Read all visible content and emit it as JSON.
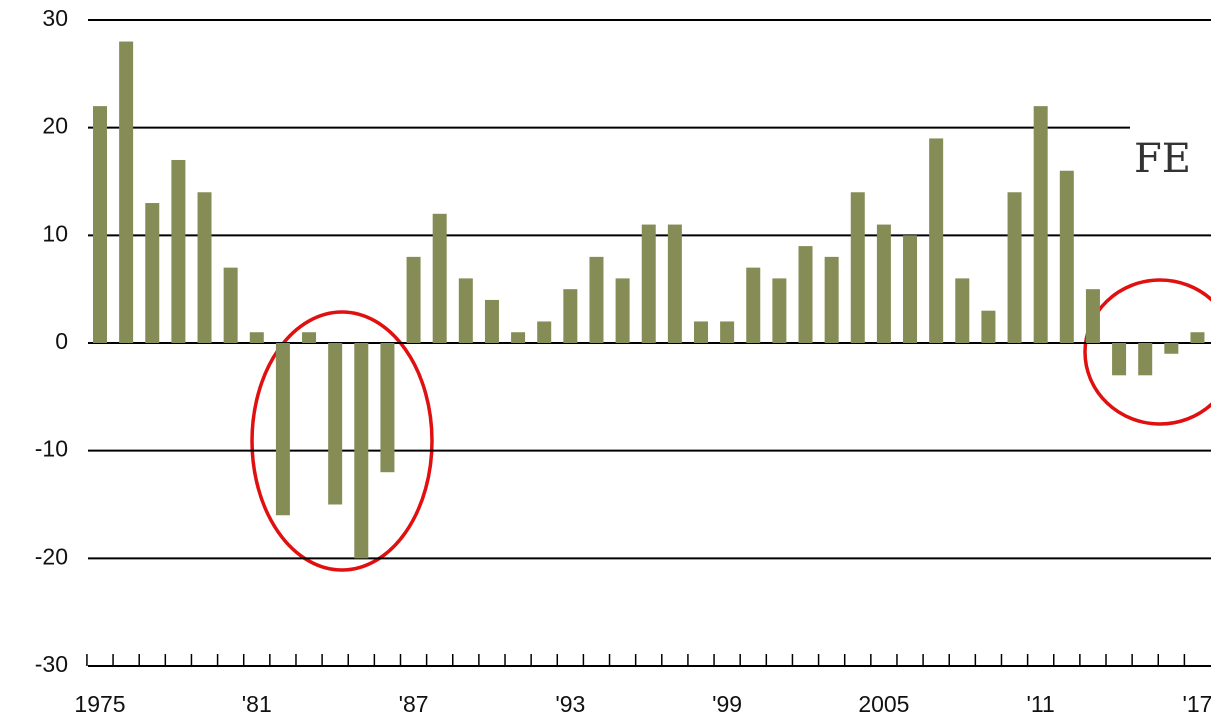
{
  "chart_data": {
    "type": "bar",
    "annotation": "FE",
    "categories": [
      "1975",
      null,
      null,
      null,
      null,
      null,
      "'81",
      null,
      null,
      null,
      null,
      null,
      "'87",
      null,
      null,
      null,
      null,
      null,
      "'93",
      null,
      null,
      null,
      null,
      null,
      "'99",
      null,
      null,
      null,
      null,
      null,
      "2005",
      null,
      null,
      null,
      null,
      null,
      "'11",
      null,
      null,
      null,
      null,
      null,
      "'17"
    ],
    "values": [
      22,
      28,
      13,
      17,
      14,
      7,
      1,
      -16,
      1,
      -15,
      -20,
      -12,
      8,
      12,
      6,
      4,
      1,
      2,
      5,
      8,
      6,
      11,
      11,
      2,
      2,
      7,
      6,
      9,
      8,
      14,
      11,
      10,
      19,
      6,
      3,
      14,
      22,
      16,
      5,
      -3,
      -3,
      -1,
      1
    ],
    "color": "#868c55",
    "ylim": [
      -30,
      30
    ],
    "yticks": [
      -30,
      -20,
      -10,
      0,
      10,
      20,
      30
    ],
    "grid": true
  }
}
